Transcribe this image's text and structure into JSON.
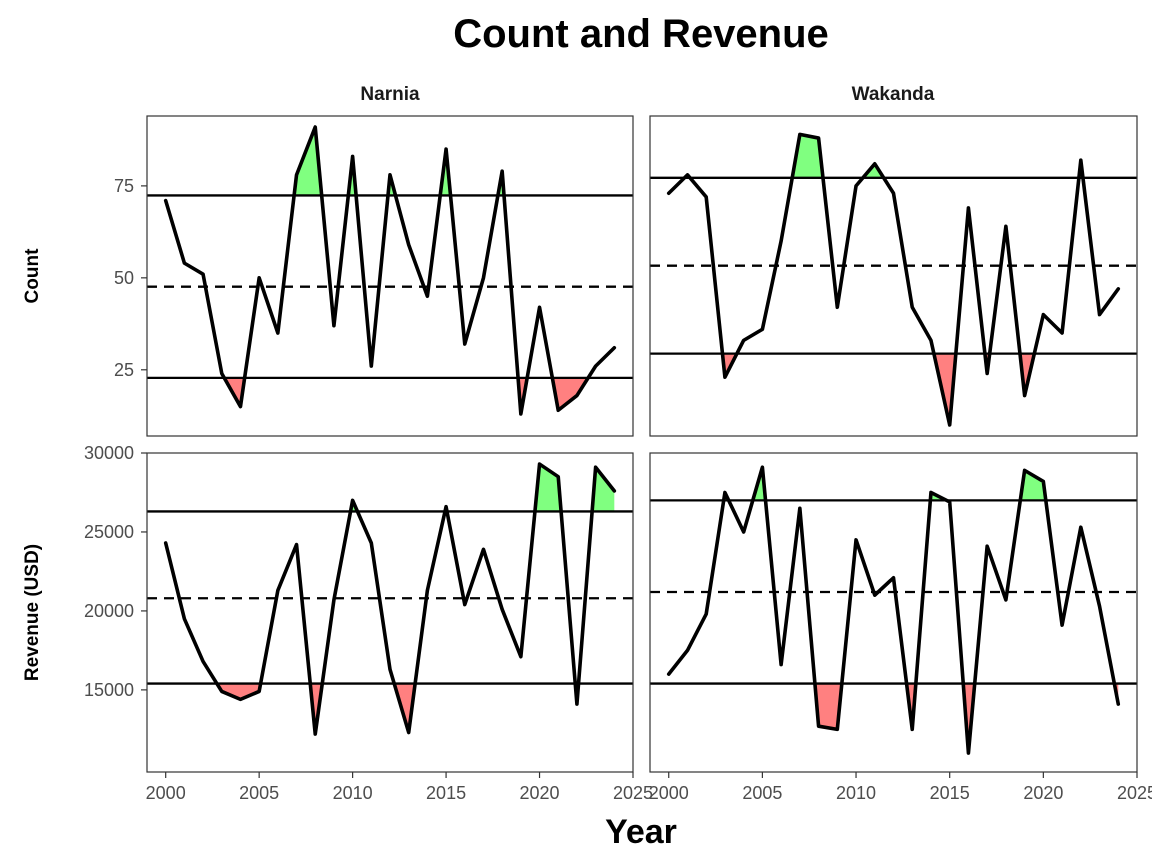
{
  "chart_data": {
    "type": "line",
    "title": "Count and Revenue",
    "xlabel": "Year",
    "facet_columns": [
      "Narnia",
      "Wakanda"
    ],
    "x": [
      2000,
      2001,
      2002,
      2003,
      2004,
      2005,
      2006,
      2007,
      2008,
      2009,
      2010,
      2011,
      2012,
      2013,
      2014,
      2015,
      2016,
      2017,
      2018,
      2019,
      2020,
      2021,
      2022,
      2023,
      2024
    ],
    "x_ticks": [
      "2000",
      "2005",
      "2010",
      "2015",
      "2020",
      "2025"
    ],
    "xlim": [
      1999,
      2025
    ],
    "rows": [
      {
        "ylabel": "Count",
        "ylim": [
          7,
          94
        ],
        "y_ticks": [
          "25",
          "50",
          "75"
        ],
        "panels": [
          {
            "facet": "Narnia",
            "values": [
              71,
              54,
              51,
              24,
              15,
              50,
              35,
              78,
              91,
              37,
              83,
              26,
              78,
              59,
              45,
              85,
              32,
              50,
              79,
              13,
              42,
              14,
              18,
              26,
              31
            ],
            "upper": 72.4,
            "mean": 47.6,
            "lower": 22.8
          },
          {
            "facet": "Wakanda",
            "values": [
              73,
              78,
              72,
              23,
              33,
              36,
              60,
              89,
              88,
              42,
              75,
              81,
              73,
              42,
              33,
              10,
              69,
              24,
              64,
              18,
              40,
              35,
              82,
              40,
              47
            ],
            "upper": 77.2,
            "mean": 53.3,
            "lower": 29.4
          }
        ]
      },
      {
        "ylabel": "Revenue (USD)",
        "ylim": [
          9800,
          30000
        ],
        "y_ticks": [
          "15000",
          "20000",
          "25000",
          "30000"
        ],
        "panels": [
          {
            "facet": "Narnia",
            "values": [
              24300,
              19500,
              16800,
              14900,
              14400,
              14900,
              21300,
              24200,
              12200,
              20700,
              27000,
              24300,
              16300,
              12300,
              21300,
              26600,
              20400,
              23900,
              20100,
              17100,
              29300,
              28500,
              14100,
              29100,
              27600
            ],
            "upper": 26300,
            "mean": 20800,
            "lower": 15400
          },
          {
            "facet": "Wakanda",
            "values": [
              16000,
              17500,
              19800,
              27500,
              25000,
              29100,
              16600,
              26500,
              12700,
              12500,
              24500,
              21000,
              22100,
              12500,
              27500,
              26900,
              11000,
              24100,
              20700,
              28900,
              28200,
              19100,
              25300,
              20300,
              14100
            ],
            "upper": 27000,
            "mean": 21200,
            "lower": 15400
          }
        ]
      }
    ],
    "colors": {
      "above": "#80ff80",
      "below": "#ff8080",
      "line": "#000000",
      "panel_border": "#333333",
      "reference": "#000000"
    }
  }
}
